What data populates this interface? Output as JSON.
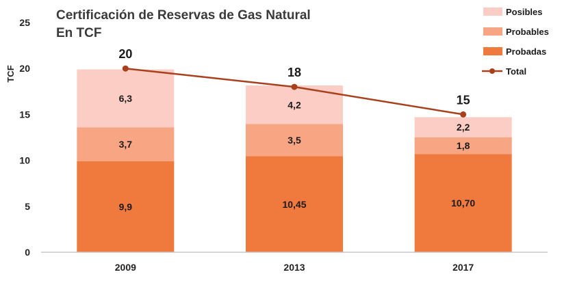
{
  "chart_data": {
    "type": "bar",
    "stacked": true,
    "title": "Certificación de Reservas de Gas Natural",
    "subtitle": "En TCF",
    "ylabel": "TCF",
    "xlabel": "",
    "ylim": [
      0,
      25
    ],
    "yticks": [
      0,
      5,
      10,
      15,
      20,
      25
    ],
    "categories": [
      "2009",
      "2013",
      "2017"
    ],
    "series": [
      {
        "name": "Probadas",
        "values": [
          9.9,
          10.45,
          10.7
        ],
        "labels": [
          "9,9",
          "10,45",
          "10,70"
        ],
        "color": "#f07a3e"
      },
      {
        "name": "Probables",
        "values": [
          3.7,
          3.5,
          1.8
        ],
        "labels": [
          "3,7",
          "3,5",
          "1,8"
        ],
        "color": "#f7a583"
      },
      {
        "name": "Posibles",
        "values": [
          6.3,
          4.2,
          2.2
        ],
        "labels": [
          "6,3",
          "4,2",
          "2,2"
        ],
        "color": "#fbcdc5"
      }
    ],
    "total": {
      "name": "Total",
      "values": [
        20,
        18,
        15
      ],
      "labels": [
        "20",
        "18",
        "15"
      ],
      "color": "#a8401c"
    },
    "legend_order": [
      "Posibles",
      "Probables",
      "Probadas",
      "Total"
    ],
    "legend_position": "top-right",
    "grid": false
  }
}
